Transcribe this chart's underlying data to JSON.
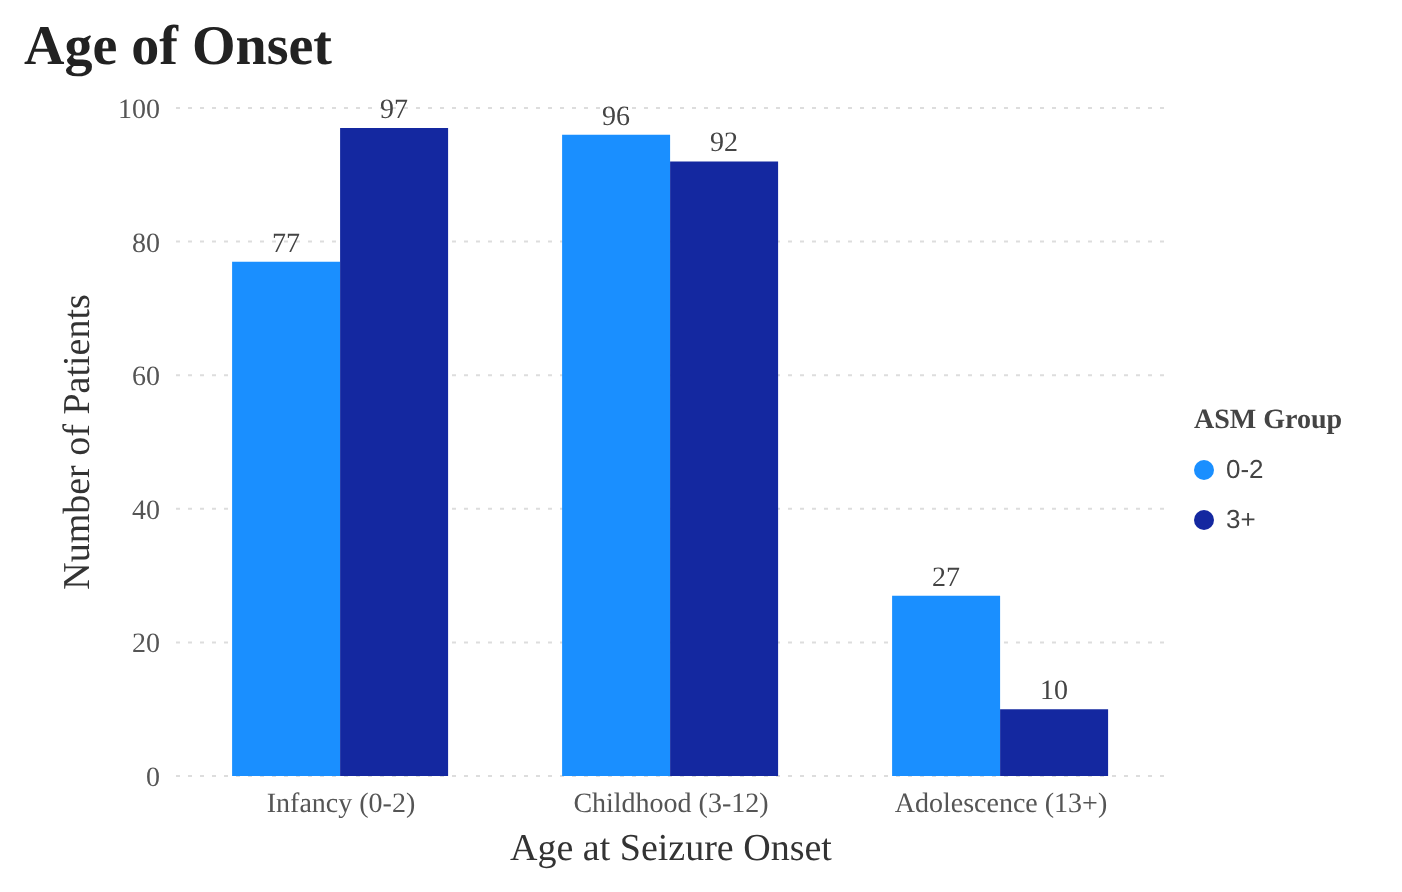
{
  "chart_data": {
    "type": "bar",
    "title": "Age of Onset",
    "xlabel": "Age at Seizure Onset",
    "ylabel": "Number of Patients",
    "legend_title": "ASM Group",
    "categories": [
      "Infancy (0-2)",
      "Childhood (3-12)",
      "Adolescence (13+)"
    ],
    "series": [
      {
        "name": "0-2",
        "color": "#1a8fff",
        "values": [
          77,
          96,
          27
        ]
      },
      {
        "name": "3+",
        "color": "#1428a0",
        "values": [
          97,
          92,
          10
        ]
      }
    ],
    "ylim": [
      0,
      100
    ],
    "yticks": [
      0,
      20,
      40,
      60,
      80,
      100
    ],
    "grid": "y",
    "legend": "right",
    "data_labels": true
  }
}
